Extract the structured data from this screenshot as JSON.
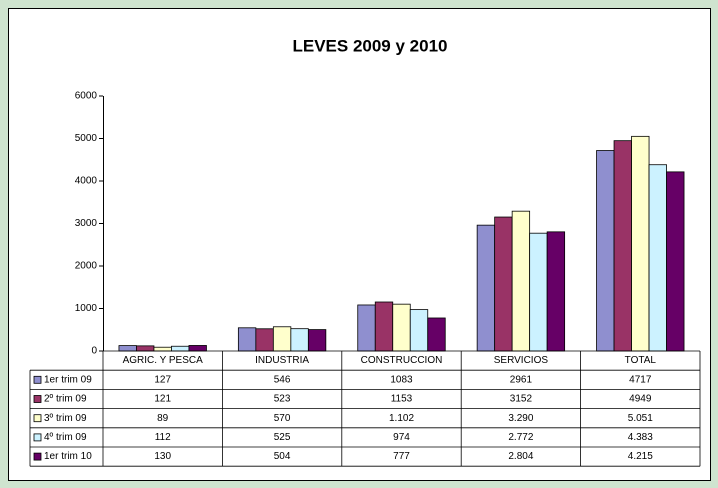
{
  "chart_data": {
    "type": "bar",
    "title": "LEVES 2009 y 2010",
    "categories": [
      "AGRIC. Y PESCA",
      "INDUSTRIA",
      "CONSTRUCCION",
      "SERVICIOS",
      "TOTAL"
    ],
    "series": [
      {
        "name": "1er trim 09",
        "color": "#8f8fcf",
        "values": [
          127,
          546,
          1083,
          2961,
          4717
        ]
      },
      {
        "name": "2º trim 09",
        "color": "#993366",
        "values": [
          121,
          523,
          1153,
          3152,
          4949
        ]
      },
      {
        "name": "3º trim 09",
        "color": "#ffffcc",
        "values": [
          89,
          570,
          1102,
          3290,
          5051
        ],
        "value_labels": [
          "89",
          "570",
          "1.102",
          "3.290",
          "5.051"
        ]
      },
      {
        "name": "4º trim 09",
        "color": "#ccf2ff",
        "values": [
          112,
          525,
          974,
          2772,
          4383
        ],
        "value_labels": [
          "112",
          "525",
          "974",
          "2.772",
          "4.383"
        ]
      },
      {
        "name": "1er trim 10",
        "color": "#660066",
        "values": [
          130,
          504,
          777,
          2804,
          4215
        ],
        "value_labels": [
          "130",
          "504",
          "777",
          "2.804",
          "4.215"
        ]
      }
    ],
    "ylim": [
      0,
      6000
    ],
    "yticks": [
      0,
      1000,
      2000,
      3000,
      4000,
      5000,
      6000
    ],
    "grid": false,
    "data_table": true
  }
}
